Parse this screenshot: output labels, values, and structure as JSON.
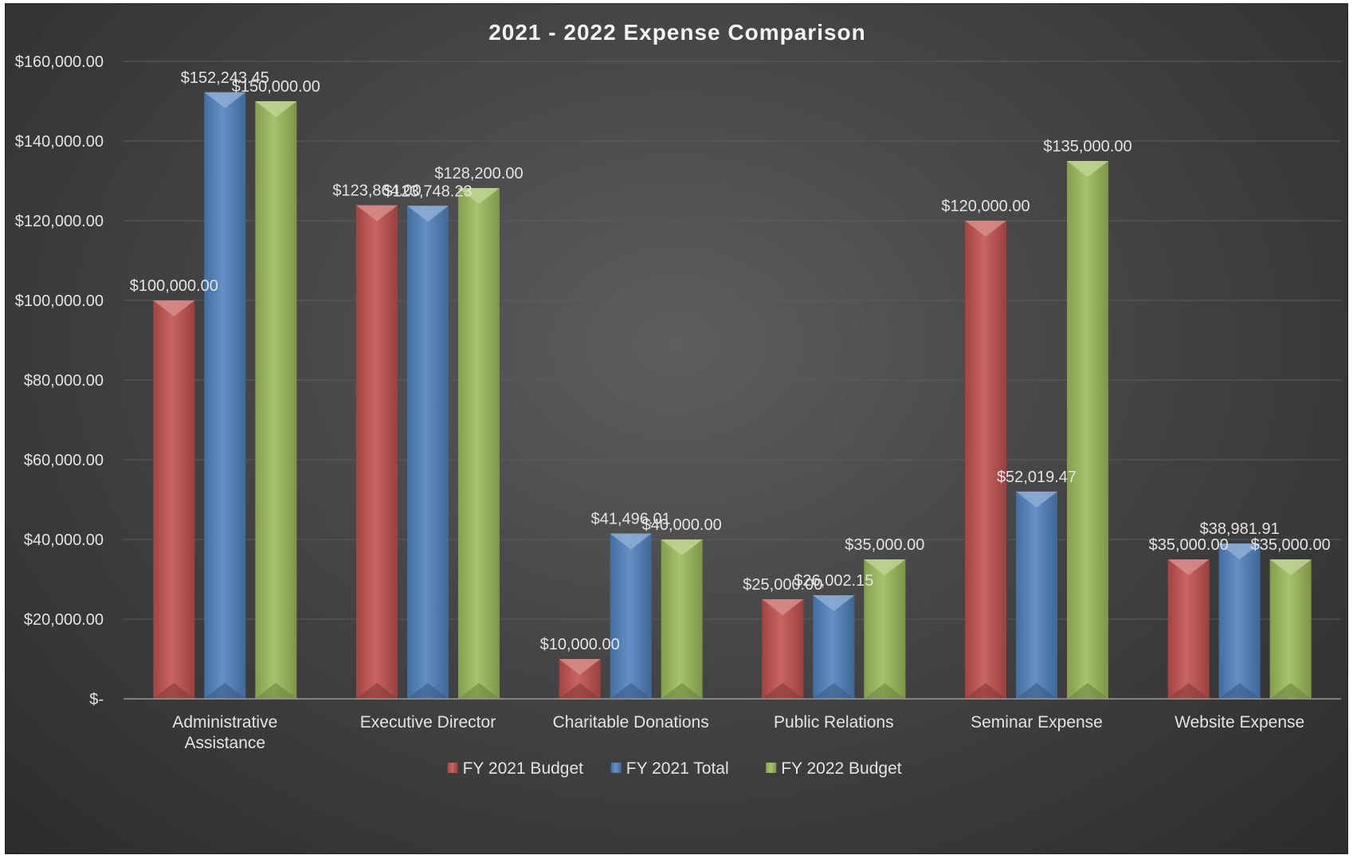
{
  "chart_data": {
    "type": "bar",
    "title": "2021 - 2022 Expense Comparison",
    "xlabel": "",
    "ylabel": "",
    "ylim": [
      0,
      160000
    ],
    "y_ticks": [
      "$-",
      "$20,000.00",
      "$40,000.00",
      "$60,000.00",
      "$80,000.00",
      "$100,000.00",
      "$120,000.00",
      "$140,000.00",
      "$160,000.00"
    ],
    "categories": [
      [
        "Administrative",
        "Assistance"
      ],
      [
        "Executive Director"
      ],
      [
        "Charitable Donations"
      ],
      [
        "Public Relations"
      ],
      [
        "Seminar Expense"
      ],
      [
        "Website Expense"
      ]
    ],
    "series": [
      {
        "name": "FY 2021 Budget",
        "color": "#c0504d",
        "values": [
          100000,
          123864,
          10000,
          25000,
          120000,
          35000
        ],
        "labels": [
          "$100,000.00",
          "$123,864.00",
          "$10,000.00",
          "$25,000.00",
          "$120,000.00",
          "$35,000.00"
        ]
      },
      {
        "name": "FY 2021 Total",
        "color": "#4f81bd",
        "values": [
          152243.45,
          123748.23,
          41496.01,
          26002.15,
          52019.47,
          38981.91
        ],
        "labels": [
          "$152,243.45",
          "$123,748.23",
          "$41,496.01",
          "$26,002.15",
          "$52,019.47",
          "$38,981.91"
        ]
      },
      {
        "name": "FY 2022 Budget",
        "color": "#9bbb59",
        "values": [
          150000,
          128200,
          40000,
          35000,
          135000,
          35000
        ],
        "labels": [
          "$150,000.00",
          "$128,200.00",
          "$40,000.00",
          "$35,000.00",
          "$135,000.00",
          "$35,000.00"
        ]
      }
    ],
    "legend_position": "bottom",
    "grid": true
  }
}
